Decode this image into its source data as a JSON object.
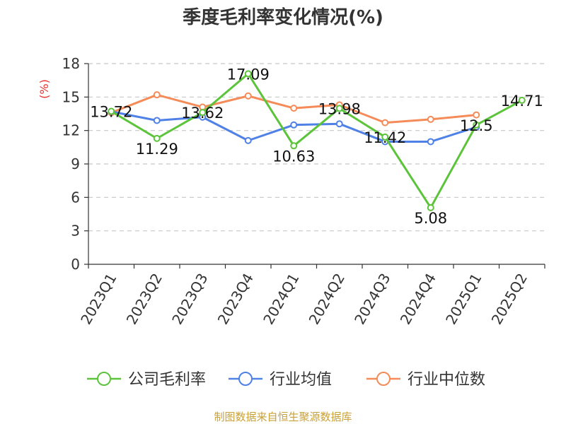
{
  "chart_data": {
    "type": "line",
    "title": "季度毛利率变化情况(%)",
    "ylabel": "(%)",
    "ylim": [
      0,
      18
    ],
    "yticks": [
      0,
      3,
      6,
      9,
      12,
      15,
      18
    ],
    "grid": true,
    "legend": "bottom",
    "categories": [
      "2023Q1",
      "2023Q2",
      "2023Q3",
      "2023Q4",
      "2024Q1",
      "2024Q2",
      "2024Q3",
      "2024Q4",
      "2025Q1",
      "2025Q2"
    ],
    "series": [
      {
        "name": "公司毛利率",
        "color": "#5cc43a",
        "values": [
          13.72,
          11.29,
          13.62,
          17.09,
          10.63,
          13.98,
          11.42,
          5.08,
          12.5,
          14.71
        ],
        "labels": [
          "13.72",
          "11.29",
          "13.62",
          "17.09",
          "10.63",
          "13.98",
          "11.42",
          "5.08",
          "12.5",
          "14.71"
        ]
      },
      {
        "name": "行业均值",
        "color": "#4f81e6",
        "values": [
          13.7,
          12.9,
          13.2,
          11.1,
          12.5,
          12.6,
          11.0,
          11.0,
          12.3,
          null
        ]
      },
      {
        "name": "行业中位数",
        "color": "#f58b58",
        "values": [
          13.6,
          15.2,
          14.1,
          15.1,
          14.0,
          14.3,
          12.7,
          13.0,
          13.4,
          null
        ]
      }
    ]
  },
  "footer": {
    "source": "制图数据来自恒生聚源数据库"
  }
}
